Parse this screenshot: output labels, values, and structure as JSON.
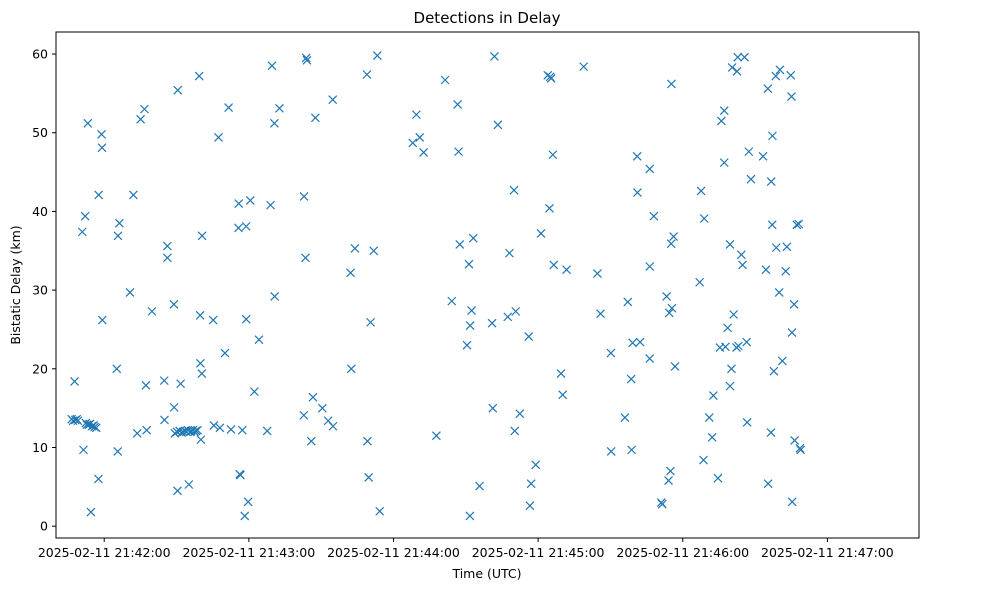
{
  "chart_data": {
    "type": "scatter",
    "title": "Detections in Delay",
    "xlabel": "Time (UTC)",
    "ylabel": "Bistatic Delay (km)",
    "marker": "x",
    "color": "#1f77b4",
    "xlim": [
      -20,
      338
    ],
    "ylim": [
      -1.5,
      62.8
    ],
    "x_unit": "seconds after 2025-02-11 21:42:00",
    "xticks": [
      {
        "value": 0,
        "label": "2025-02-11 21:42:00"
      },
      {
        "value": 60,
        "label": "2025-02-11 21:43:00"
      },
      {
        "value": 120,
        "label": "2025-02-11 21:44:00"
      },
      {
        "value": 180,
        "label": "2025-02-11 21:45:00"
      },
      {
        "value": 240,
        "label": "2025-02-11 21:46:00"
      },
      {
        "value": 300,
        "label": "2025-02-11 21:47:00"
      }
    ],
    "yticks": [
      {
        "value": 0,
        "label": "0"
      },
      {
        "value": 10,
        "label": "10"
      },
      {
        "value": 20,
        "label": "20"
      },
      {
        "value": 30,
        "label": "30"
      },
      {
        "value": 40,
        "label": "40"
      },
      {
        "value": 50,
        "label": "50"
      },
      {
        "value": 60,
        "label": "60"
      }
    ],
    "points": [
      [
        -13.5,
        13.6
      ],
      [
        -12.9,
        13.4
      ],
      [
        -12.3,
        18.4
      ],
      [
        -12,
        13.5
      ],
      [
        -11.4,
        13.6
      ],
      [
        -10.9,
        13.4
      ],
      [
        -9.1,
        37.4
      ],
      [
        -8.6,
        9.7
      ],
      [
        -7.9,
        39.4
      ],
      [
        -7.6,
        13.1
      ],
      [
        -7.2,
        12.9
      ],
      [
        -6.8,
        51.2
      ],
      [
        -6.4,
        12.9
      ],
      [
        -5.9,
        13
      ],
      [
        -5.5,
        1.8
      ],
      [
        -5.1,
        12.7
      ],
      [
        -4.4,
        12.8
      ],
      [
        -4,
        12.6
      ],
      [
        -3.3,
        12.5
      ],
      [
        -2.4,
        6
      ],
      [
        -2.3,
        42.1
      ],
      [
        -1.1,
        49.8
      ],
      [
        -0.9,
        48.1
      ],
      [
        -0.8,
        26.2
      ],
      [
        5.2,
        20
      ],
      [
        5.6,
        9.5
      ],
      [
        5.7,
        36.9
      ],
      [
        6.3,
        38.5
      ],
      [
        10.7,
        29.7
      ],
      [
        12.1,
        42.1
      ],
      [
        13.7,
        11.8
      ],
      [
        15.1,
        51.7
      ],
      [
        16.7,
        53
      ],
      [
        17.3,
        17.9
      ],
      [
        17.6,
        12.2
      ],
      [
        19.8,
        27.3
      ],
      [
        24.9,
        18.5
      ],
      [
        25,
        13.5
      ],
      [
        26.2,
        35.6
      ],
      [
        26.2,
        34.1
      ],
      [
        28.9,
        28.2
      ],
      [
        29,
        15.1
      ],
      [
        29.3,
        11.8
      ],
      [
        30.2,
        12
      ],
      [
        30.4,
        4.5
      ],
      [
        30.5,
        55.4
      ],
      [
        31.3,
        12.1
      ],
      [
        31.7,
        18.1
      ],
      [
        32.1,
        11.9
      ],
      [
        32.7,
        12
      ],
      [
        33.5,
        12.1
      ],
      [
        34.1,
        12
      ],
      [
        34.7,
        12.2
      ],
      [
        35.1,
        5.3
      ],
      [
        35.7,
        12
      ],
      [
        36.1,
        12.1
      ],
      [
        36.8,
        12.2
      ],
      [
        37.5,
        12
      ],
      [
        38.1,
        12.1
      ],
      [
        38.7,
        12.2
      ],
      [
        39.4,
        57.2
      ],
      [
        39.8,
        26.8
      ],
      [
        39.9,
        20.7
      ],
      [
        40.1,
        11
      ],
      [
        40.5,
        19.4
      ],
      [
        40.6,
        36.9
      ],
      [
        45.2,
        26.2
      ],
      [
        45.5,
        12.8
      ],
      [
        47.4,
        49.4
      ],
      [
        48,
        12.5
      ],
      [
        50.1,
        22
      ],
      [
        51.6,
        53.2
      ],
      [
        52.6,
        12.3
      ],
      [
        55.7,
        37.9
      ],
      [
        55.8,
        41
      ],
      [
        56.2,
        6.6
      ],
      [
        56.5,
        6.5
      ],
      [
        57.3,
        12.2
      ],
      [
        58.3,
        1.3
      ],
      [
        58.9,
        26.3
      ],
      [
        58.9,
        38.1
      ],
      [
        59.7,
        3.1
      ],
      [
        60.6,
        41.4
      ],
      [
        62.3,
        17.1
      ],
      [
        64.2,
        23.7
      ],
      [
        67.6,
        12.1
      ],
      [
        69,
        40.8
      ],
      [
        69.6,
        58.5
      ],
      [
        70.6,
        51.2
      ],
      [
        70.7,
        29.2
      ],
      [
        72.7,
        53.1
      ],
      [
        82.8,
        14.1
      ],
      [
        82.9,
        41.9
      ],
      [
        83.5,
        34.1
      ],
      [
        83.8,
        59.5
      ],
      [
        84.1,
        59.2
      ],
      [
        85.9,
        10.8
      ],
      [
        86.6,
        16.4
      ],
      [
        87.6,
        51.9
      ],
      [
        90.5,
        15
      ],
      [
        92.9,
        13.4
      ],
      [
        94.8,
        54.2
      ],
      [
        94.9,
        12.7
      ],
      [
        102.2,
        32.2
      ],
      [
        102.5,
        20
      ],
      [
        104,
        35.3
      ],
      [
        109,
        57.4
      ],
      [
        109.2,
        10.8
      ],
      [
        109.7,
        6.2
      ],
      [
        110.5,
        25.9
      ],
      [
        111.8,
        35
      ],
      [
        113.3,
        59.8
      ],
      [
        114.3,
        1.9
      ],
      [
        128,
        48.7
      ],
      [
        129.5,
        52.3
      ],
      [
        130.9,
        49.4
      ],
      [
        132.5,
        47.5
      ],
      [
        137.8,
        11.5
      ],
      [
        141.4,
        56.7
      ],
      [
        144.2,
        28.6
      ],
      [
        146.6,
        53.6
      ],
      [
        147,
        47.6
      ],
      [
        147.5,
        35.8
      ],
      [
        150.5,
        23
      ],
      [
        151.3,
        33.3
      ],
      [
        151.7,
        1.3
      ],
      [
        151.8,
        25.5
      ],
      [
        152.4,
        27.4
      ],
      [
        153.1,
        36.6
      ],
      [
        155.7,
        5.1
      ],
      [
        160.9,
        25.8
      ],
      [
        161.2,
        15
      ],
      [
        161.9,
        59.7
      ],
      [
        163.3,
        51
      ],
      [
        167.4,
        26.6
      ],
      [
        168.1,
        34.7
      ],
      [
        170,
        42.7
      ],
      [
        170.3,
        12.1
      ],
      [
        170.7,
        27.3
      ],
      [
        172.4,
        14.3
      ],
      [
        176.1,
        24.1
      ],
      [
        176.6,
        2.6
      ],
      [
        177.1,
        5.4
      ],
      [
        179,
        7.8
      ],
      [
        181.2,
        37.2
      ],
      [
        184,
        57.3
      ],
      [
        184.7,
        40.4
      ],
      [
        185,
        57.1
      ],
      [
        185.4,
        56.9
      ],
      [
        186.1,
        47.2
      ],
      [
        186.5,
        33.2
      ],
      [
        189.5,
        19.4
      ],
      [
        190.2,
        16.7
      ],
      [
        191.8,
        32.6
      ],
      [
        198.9,
        58.4
      ],
      [
        204.6,
        32.1
      ],
      [
        205.9,
        27
      ],
      [
        210.2,
        22
      ],
      [
        210.3,
        9.5
      ],
      [
        216,
        13.8
      ],
      [
        217.2,
        28.5
      ],
      [
        218.6,
        18.7
      ],
      [
        218.8,
        9.7
      ],
      [
        219.2,
        23.3
      ],
      [
        221.1,
        47
      ],
      [
        221.2,
        42.4
      ],
      [
        222.3,
        23.4
      ],
      [
        226.3,
        33
      ],
      [
        226.3,
        45.4
      ],
      [
        226.3,
        21.3
      ],
      [
        228,
        39.4
      ],
      [
        231.1,
        3
      ],
      [
        231.5,
        2.8
      ],
      [
        233.3,
        29.2
      ],
      [
        234.1,
        5.8
      ],
      [
        234.4,
        27.1
      ],
      [
        234.9,
        7
      ],
      [
        235.2,
        35.9
      ],
      [
        235.3,
        56.2
      ],
      [
        235.5,
        27.7
      ],
      [
        236.2,
        36.8
      ],
      [
        236.8,
        20.3
      ],
      [
        247,
        31
      ],
      [
        247.6,
        42.6
      ],
      [
        248.6,
        8.4
      ],
      [
        248.9,
        39.1
      ],
      [
        251,
        13.8
      ],
      [
        252.2,
        11.3
      ],
      [
        252.7,
        16.6
      ],
      [
        254.6,
        6.1
      ],
      [
        255.4,
        22.7
      ],
      [
        256,
        51.5
      ],
      [
        257.2,
        52.8
      ],
      [
        257.2,
        46.2
      ],
      [
        257.7,
        22.8
      ],
      [
        258.6,
        25.2
      ],
      [
        259.6,
        35.8
      ],
      [
        259.6,
        17.8
      ],
      [
        260.2,
        20
      ],
      [
        260.5,
        58.3
      ],
      [
        261.1,
        26.9
      ],
      [
        262.3,
        22.7
      ],
      [
        262.5,
        57.8
      ],
      [
        262.8,
        59.6
      ],
      [
        263.1,
        22.9
      ],
      [
        264.3,
        34.5
      ],
      [
        264.8,
        33.2
      ],
      [
        265.6,
        59.6
      ],
      [
        266.5,
        23.4
      ],
      [
        266.7,
        13.2
      ],
      [
        267.4,
        47.6
      ],
      [
        268.3,
        44.1
      ],
      [
        273.3,
        47
      ],
      [
        274.5,
        32.6
      ],
      [
        275.3,
        55.6
      ],
      [
        275.4,
        5.4
      ],
      [
        276.6,
        11.9
      ],
      [
        276.7,
        43.8
      ],
      [
        277.1,
        38.3
      ],
      [
        277.2,
        49.6
      ],
      [
        277.8,
        19.7
      ],
      [
        278.6,
        57.2
      ],
      [
        278.8,
        35.4
      ],
      [
        280,
        29.7
      ],
      [
        280.3,
        58
      ],
      [
        281.3,
        21
      ],
      [
        282.7,
        32.4
      ],
      [
        283.2,
        35.5
      ],
      [
        284.8,
        57.3
      ],
      [
        285.1,
        54.6
      ],
      [
        285.3,
        24.6
      ],
      [
        285.4,
        3.1
      ],
      [
        286.2,
        28.2
      ],
      [
        286.4,
        10.9
      ],
      [
        287.3,
        38.3
      ],
      [
        288.1,
        38.4
      ],
      [
        288.6,
        9.9
      ],
      [
        288.9,
        9.7
      ]
    ]
  }
}
